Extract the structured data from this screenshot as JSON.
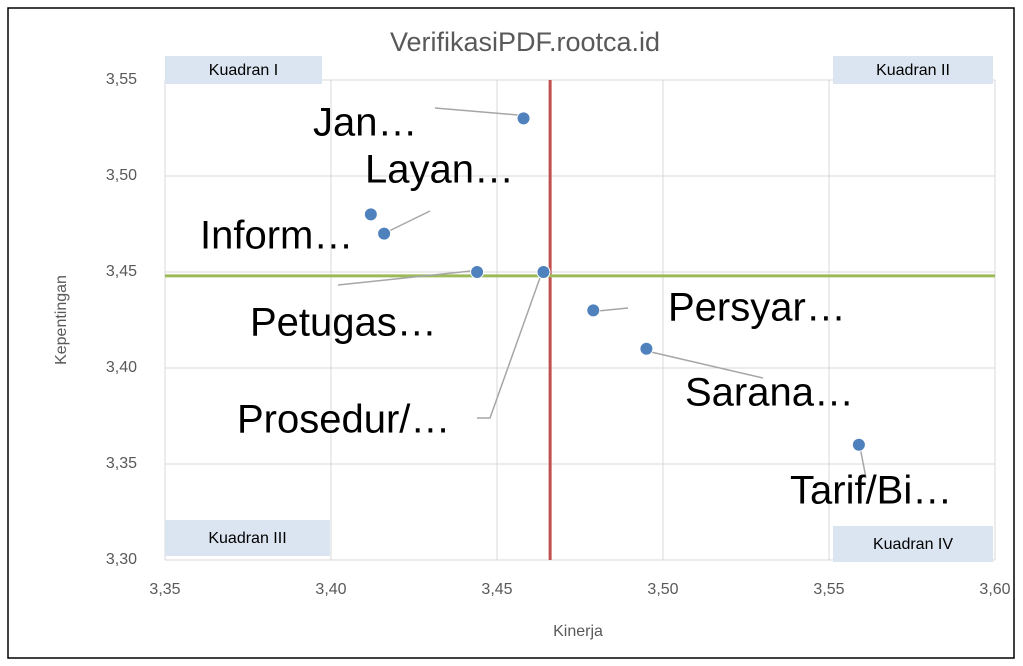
{
  "chart_data": {
    "type": "scatter",
    "title": "VerifikasiPDF.rootca.id",
    "x_label": "Kinerja",
    "y_label": "Kepentingan",
    "series": [
      {
        "color": "#4f81bd",
        "labels": [
          "Jan…",
          "Layan…",
          "Inform…",
          "Petugas…",
          "Prosedur/…",
          "Persyar…",
          "Sarana…",
          "Tarif/Bi…"
        ],
        "x": [
          3.458,
          3.416,
          3.412,
          3.444,
          3.464,
          3.479,
          3.495,
          3.559
        ],
        "values": [
          3.53,
          3.47,
          3.48,
          3.45,
          3.45,
          3.43,
          3.41,
          3.36
        ]
      }
    ],
    "reference_lines": [
      {
        "axis": "x",
        "value": 3.466,
        "color": "#c0504d"
      },
      {
        "axis": "y",
        "value": 3.448,
        "color": "#9bbb59"
      }
    ],
    "quadrants": [
      "Kuadran I",
      "Kuadran II",
      "Kuadran III",
      "Kuadran IV"
    ],
    "xlim": [
      3.35,
      3.6
    ],
    "xticks": [
      {
        "value": 3.35,
        "label": "3,35"
      },
      {
        "value": 3.4,
        "label": "3,40"
      },
      {
        "value": 3.45,
        "label": "3,45"
      },
      {
        "value": 3.5,
        "label": "3,50"
      },
      {
        "value": 3.55,
        "label": "3,55"
      },
      {
        "value": 3.6,
        "label": "3,60"
      }
    ],
    "ylim": [
      3.3,
      3.55
    ],
    "yticks": [
      {
        "value": 3.3,
        "label": "3,30"
      },
      {
        "value": 3.35,
        "label": "3,35"
      },
      {
        "value": 3.4,
        "label": "3,40"
      },
      {
        "value": 3.45,
        "label": "3,45"
      },
      {
        "value": 3.5,
        "label": "3,50"
      },
      {
        "value": 3.55,
        "label": "3,55"
      }
    ],
    "grid": true
  }
}
